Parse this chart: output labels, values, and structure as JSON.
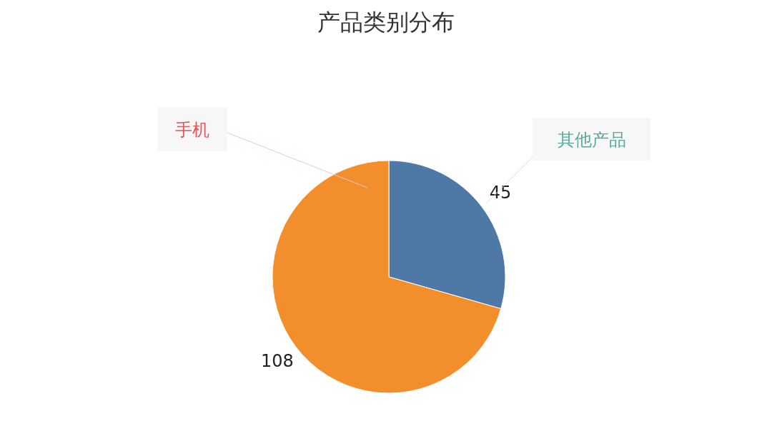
{
  "chart_data": {
    "type": "pie",
    "title": "产品类别分布",
    "categories": [
      "其他产品",
      "手机"
    ],
    "values": [
      45,
      108
    ],
    "colors": [
      "#4e79a7",
      "#f28e2b"
    ],
    "data_labels": true
  }
}
